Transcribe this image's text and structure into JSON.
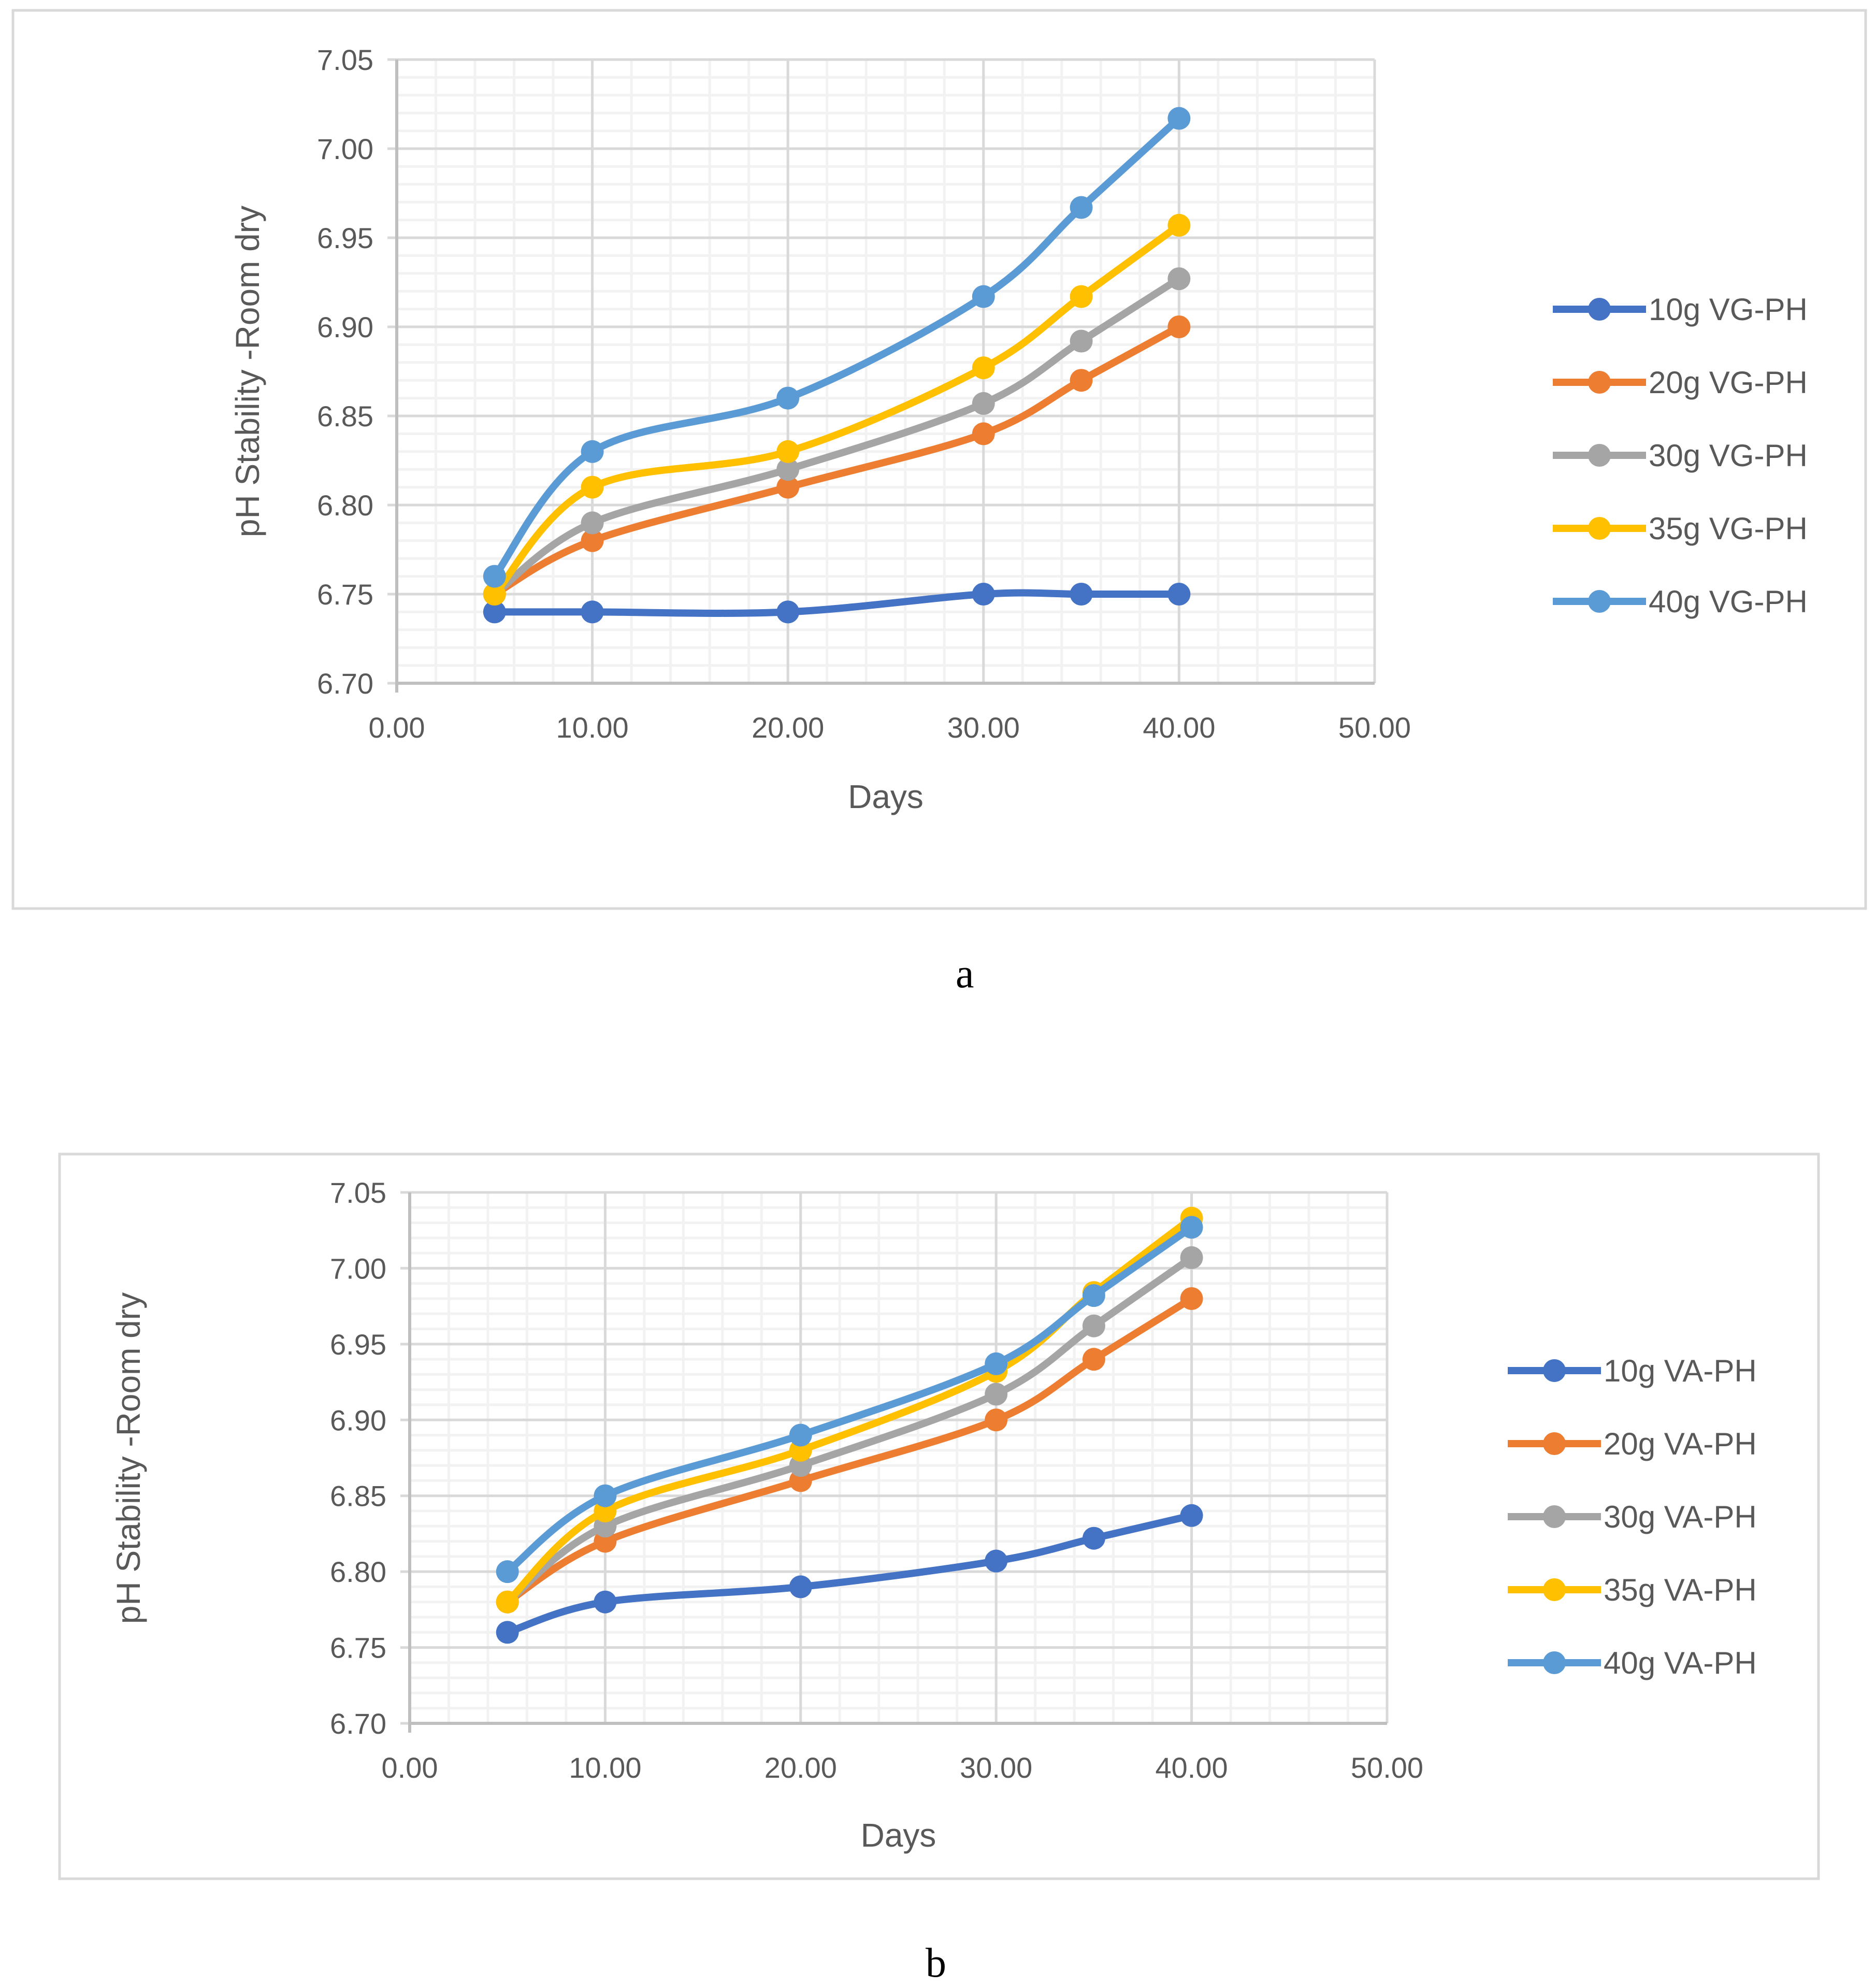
{
  "chart_data": [
    {
      "type": "line",
      "panel_label": "a",
      "title": "",
      "xlabel": "Days",
      "ylabel": "pH Stability -Room dry",
      "xlim": [
        0,
        50
      ],
      "ylim": [
        6.7,
        7.05
      ],
      "xticks": [
        "0.00",
        "10.00",
        "20.00",
        "30.00",
        "40.00",
        "50.00"
      ],
      "yticks": [
        "6.70",
        "6.75",
        "6.80",
        "6.85",
        "6.90",
        "6.95",
        "7.00",
        "7.05"
      ],
      "grid": true,
      "legend_position": "right",
      "x": [
        5,
        10,
        20,
        30,
        35,
        40
      ],
      "series": [
        {
          "name": "10g VG-PH",
          "color": "#4472C4",
          "values": [
            6.74,
            6.74,
            6.74,
            6.75,
            6.75,
            6.75
          ]
        },
        {
          "name": "20g VG-PH",
          "color": "#ED7D31",
          "values": [
            6.75,
            6.78,
            6.81,
            6.84,
            6.87,
            6.9
          ]
        },
        {
          "name": "30g VG-PH",
          "color": "#A5A5A5",
          "values": [
            6.75,
            6.79,
            6.82,
            6.857,
            6.892,
            6.927
          ]
        },
        {
          "name": "35g VG-PH",
          "color": "#FFC000",
          "values": [
            6.75,
            6.81,
            6.83,
            6.877,
            6.917,
            6.957
          ]
        },
        {
          "name": "40g VG-PH",
          "color": "#5B9BD5",
          "values": [
            6.76,
            6.83,
            6.86,
            6.917,
            6.967,
            7.017
          ]
        }
      ]
    },
    {
      "type": "line",
      "panel_label": "b",
      "title": "",
      "xlabel": "Days",
      "ylabel": "pH Stability -Room dry",
      "xlim": [
        0,
        50
      ],
      "ylim": [
        6.7,
        7.05
      ],
      "xticks": [
        "0.00",
        "10.00",
        "20.00",
        "30.00",
        "40.00",
        "50.00"
      ],
      "yticks": [
        "6.70",
        "6.75",
        "6.80",
        "6.85",
        "6.90",
        "6.95",
        "7.00",
        "7.05"
      ],
      "grid": true,
      "legend_position": "right",
      "x": [
        5,
        10,
        20,
        30,
        35,
        40
      ],
      "series": [
        {
          "name": "10g VA-PH",
          "color": "#4472C4",
          "values": [
            6.76,
            6.78,
            6.79,
            6.807,
            6.822,
            6.837
          ]
        },
        {
          "name": "20g VA-PH",
          "color": "#ED7D31",
          "values": [
            6.78,
            6.82,
            6.86,
            6.9,
            6.94,
            6.98
          ]
        },
        {
          "name": "30g VA-PH",
          "color": "#A5A5A5",
          "values": [
            6.78,
            6.83,
            6.87,
            6.917,
            6.962,
            7.007
          ]
        },
        {
          "name": "35g VA-PH",
          "color": "#FFC000",
          "values": [
            6.78,
            6.84,
            6.88,
            6.932,
            6.984,
            7.033
          ]
        },
        {
          "name": "40g VA-PH",
          "color": "#5B9BD5",
          "values": [
            6.8,
            6.85,
            6.89,
            6.937,
            6.982,
            7.027
          ]
        }
      ]
    }
  ]
}
